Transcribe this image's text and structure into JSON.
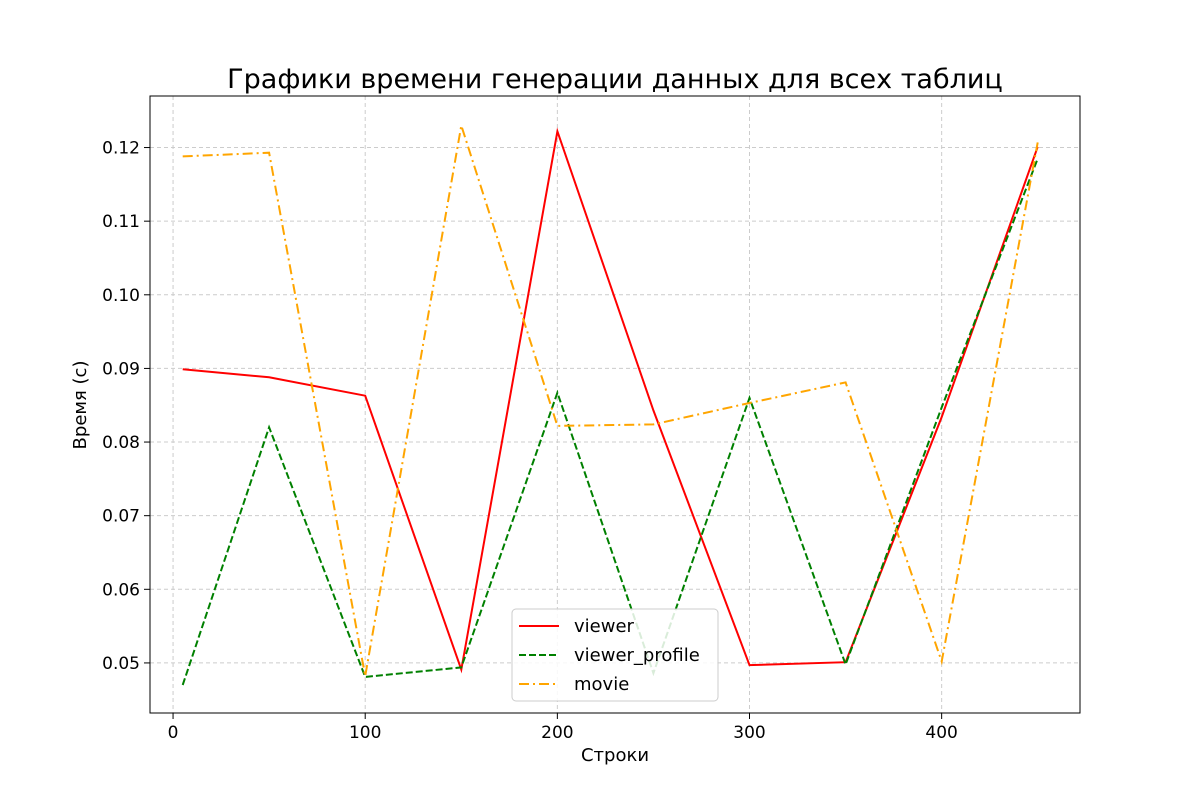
{
  "chart_data": {
    "type": "line",
    "title": "Графики времени генерации данных для всех таблиц",
    "xlabel": "Строки",
    "ylabel": "Время (с)",
    "x": [
      5,
      50,
      100,
      150,
      200,
      250,
      300,
      350,
      400,
      450
    ],
    "xlim": [
      -12,
      472
    ],
    "ylim": [
      0.0432,
      0.127
    ],
    "xticks": [
      0,
      100,
      200,
      300,
      400
    ],
    "yticks": [
      0.05,
      0.06,
      0.07,
      0.08,
      0.09,
      0.1,
      0.11,
      0.12
    ],
    "ytick_labels": [
      "0.05",
      "0.06",
      "0.07",
      "0.08",
      "0.09",
      "0.10",
      "0.11",
      "0.12"
    ],
    "grid": true,
    "legend_position": "bottom-center",
    "series": [
      {
        "name": "viewer",
        "color": "#ff0000",
        "style": "solid",
        "values": [
          0.0899,
          0.0888,
          0.0863,
          0.0491,
          0.1222,
          0.0843,
          0.0497,
          0.0501,
          0.0834,
          0.1201
        ]
      },
      {
        "name": "viewer_profile",
        "color": "#008000",
        "style": "dashed",
        "values": [
          0.047,
          0.082,
          0.0481,
          0.0494,
          0.0867,
          0.0486,
          0.086,
          0.0498,
          0.0847,
          0.1185
        ]
      },
      {
        "name": "movie",
        "color": "#ffa500",
        "style": "dashdot",
        "values": [
          0.1188,
          0.1193,
          0.0482,
          0.123,
          0.0822,
          0.0824,
          0.0853,
          0.0881,
          0.0502,
          0.1207
        ]
      }
    ]
  }
}
